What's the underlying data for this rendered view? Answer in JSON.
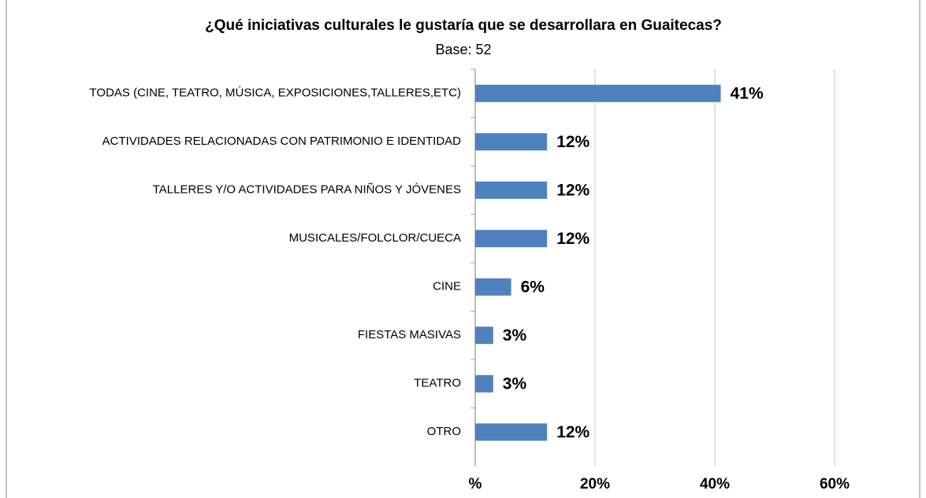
{
  "chart_data": {
    "type": "bar",
    "orientation": "horizontal",
    "title": "¿Qué iniciativas culturales le gustaría que se desarrollara en Guaitecas?",
    "subtitle": "Base: 52",
    "categories": [
      "TODAS (CINE, TEATRO, MÚSICA, EXPOSICIONES,TALLERES,ETC)",
      "ACTIVIDADES RELACIONADAS CON PATRIMONIO E IDENTIDAD",
      "TALLERES Y/O ACTIVIDADES PARA NIÑOS Y JÓVENES",
      "MUSICALES/FOLCLOR/CUECA",
      "CINE",
      "FIESTAS MASIVAS",
      "TEATRO",
      "OTRO"
    ],
    "values": [
      41,
      12,
      12,
      12,
      6,
      3,
      3,
      12
    ],
    "value_labels": [
      "41%",
      "12%",
      "12%",
      "12%",
      "6%",
      "3%",
      "3%",
      "12%"
    ],
    "color": "#4f81bd",
    "xlim": [
      0,
      60
    ],
    "xticks": [
      {
        "value": 0,
        "label": "%"
      },
      {
        "value": 20,
        "label": "20%"
      },
      {
        "value": 40,
        "label": "40%"
      },
      {
        "value": 60,
        "label": "60%"
      }
    ],
    "grid": true
  }
}
